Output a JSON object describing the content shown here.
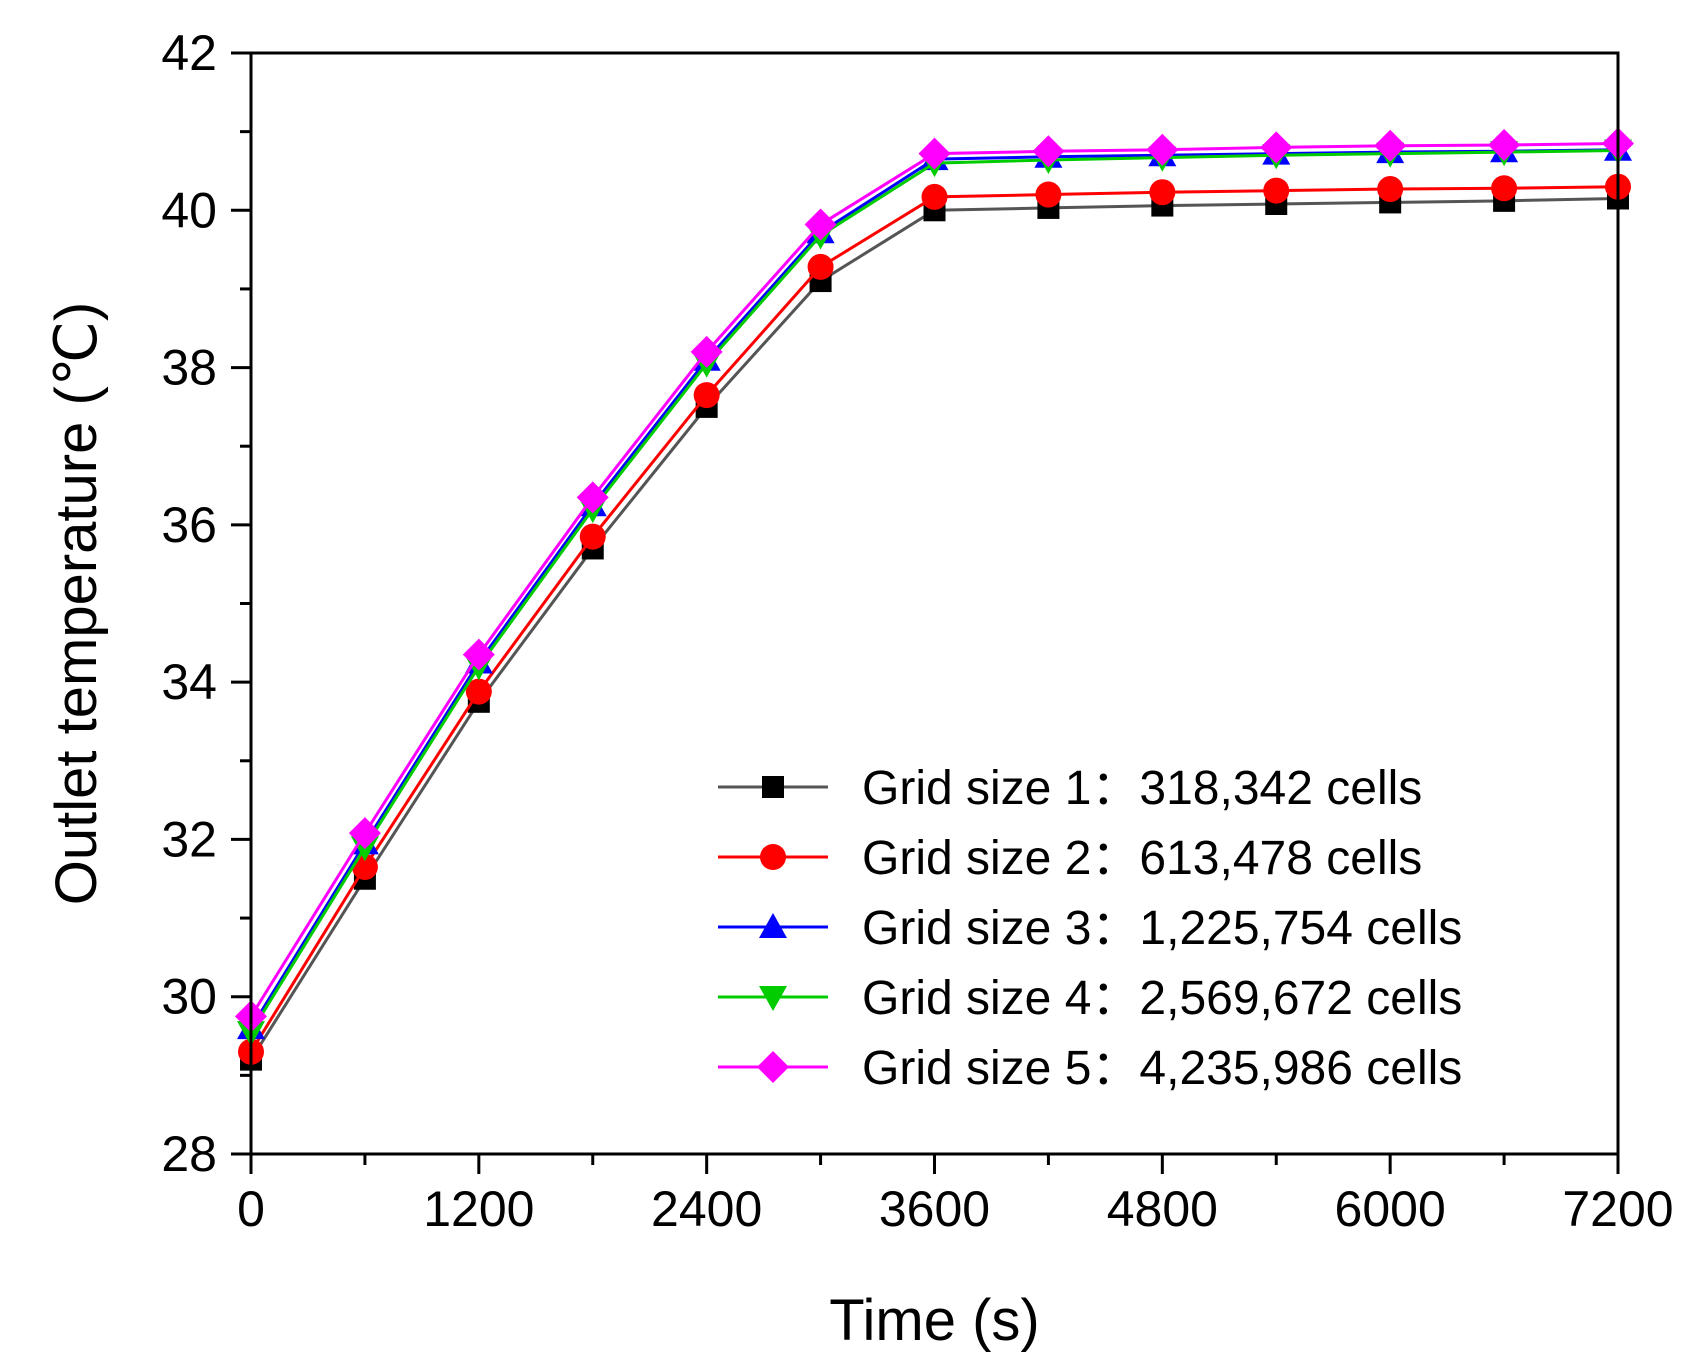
{
  "chart_data": {
    "type": "line",
    "title": "",
    "xlabel": "Time (s)",
    "ylabel": "Outlet temperature (℃)",
    "xlim": [
      0,
      7200
    ],
    "ylim": [
      28,
      42
    ],
    "xticks": [
      0,
      1200,
      2400,
      3600,
      4800,
      6000,
      7200
    ],
    "yticks": [
      28,
      30,
      32,
      34,
      36,
      38,
      40,
      42
    ],
    "grid": false,
    "legend_position": "bottom-right",
    "x": [
      0,
      600,
      1200,
      1800,
      2400,
      3000,
      3600,
      4200,
      4800,
      5400,
      6000,
      6600,
      7200
    ],
    "series": [
      {
        "name": "Grid size 1：318,342 cells",
        "color": "#000000",
        "line_color": "#555555",
        "marker": "square",
        "values": [
          29.2,
          31.5,
          33.75,
          35.7,
          37.5,
          39.1,
          40.0,
          40.03,
          40.06,
          40.08,
          40.1,
          40.12,
          40.15
        ]
      },
      {
        "name": "Grid size 2：613,478 cells",
        "color": "#ff0000",
        "line_color": "#ff0000",
        "marker": "circle",
        "values": [
          29.3,
          31.65,
          33.88,
          35.85,
          37.65,
          39.28,
          40.17,
          40.2,
          40.23,
          40.25,
          40.27,
          40.28,
          40.3
        ]
      },
      {
        "name": "Grid size 3：1,225,754 cells",
        "color": "#0000ff",
        "line_color": "#0000ff",
        "marker": "triangle-up",
        "values": [
          29.6,
          31.95,
          34.25,
          36.25,
          38.1,
          39.72,
          40.65,
          40.68,
          40.7,
          40.72,
          40.74,
          40.75,
          40.77
        ]
      },
      {
        "name": "Grid size 4：2,569,672 cells",
        "color": "#00cc00",
        "line_color": "#00cc00",
        "marker": "triangle-down",
        "values": [
          29.55,
          31.9,
          34.2,
          36.2,
          38.05,
          39.68,
          40.6,
          40.64,
          40.67,
          40.7,
          40.72,
          40.74,
          40.76
        ]
      },
      {
        "name": "Grid size 5：4,235,986 cells",
        "color": "#ff00ff",
        "line_color": "#ff00ff",
        "marker": "diamond",
        "values": [
          29.75,
          32.08,
          34.35,
          36.35,
          38.2,
          39.82,
          40.72,
          40.75,
          40.77,
          40.8,
          40.82,
          40.83,
          40.85
        ]
      }
    ]
  }
}
